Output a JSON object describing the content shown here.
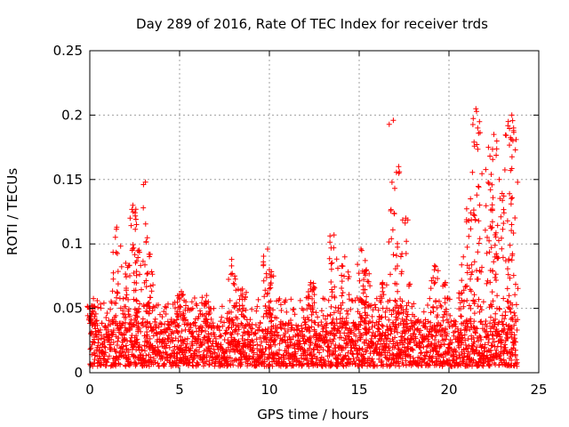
{
  "chart_data": {
    "type": "scatter",
    "title": "Day 289 of 2016, Rate Of TEC Index for receiver trds",
    "xlabel": "GPS time / hours",
    "ylabel": "ROTI / TECUs",
    "xlim": [
      0,
      25
    ],
    "ylim": [
      0,
      0.25
    ],
    "xticks": [
      0,
      5,
      10,
      15,
      20,
      25
    ],
    "xtick_labels": [
      "0",
      "5",
      "10",
      "15",
      "20",
      "25"
    ],
    "yticks": [
      0,
      0.05,
      0.1,
      0.15,
      0.2,
      0.25
    ],
    "ytick_labels": [
      "0",
      "0.05",
      "0.1",
      "0.15",
      "0.2",
      "0.25"
    ],
    "grid": true,
    "marker": "+",
    "marker_color": "#ff0000",
    "series": [
      {
        "name": "ROTI",
        "sample_step_hours": 0.05,
        "start_hour": 0.0,
        "baseline_band": [
          0.005,
          0.04
        ],
        "peaks": [
          {
            "x": 0.1,
            "y": 0.052
          },
          {
            "x": 1.5,
            "y": 0.113
          },
          {
            "x": 2.0,
            "y": 0.085
          },
          {
            "x": 2.4,
            "y": 0.13
          },
          {
            "x": 2.6,
            "y": 0.115
          },
          {
            "x": 3.1,
            "y": 0.148
          },
          {
            "x": 3.3,
            "y": 0.092
          },
          {
            "x": 5.1,
            "y": 0.063
          },
          {
            "x": 6.5,
            "y": 0.06
          },
          {
            "x": 7.9,
            "y": 0.088
          },
          {
            "x": 8.5,
            "y": 0.065
          },
          {
            "x": 9.9,
            "y": 0.096
          },
          {
            "x": 10.0,
            "y": 0.08
          },
          {
            "x": 12.3,
            "y": 0.07
          },
          {
            "x": 13.6,
            "y": 0.107
          },
          {
            "x": 14.2,
            "y": 0.09
          },
          {
            "x": 15.1,
            "y": 0.096
          },
          {
            "x": 15.4,
            "y": 0.08
          },
          {
            "x": 16.3,
            "y": 0.07
          },
          {
            "x": 16.9,
            "y": 0.196
          },
          {
            "x": 17.2,
            "y": 0.16
          },
          {
            "x": 17.6,
            "y": 0.12
          },
          {
            "x": 19.2,
            "y": 0.083
          },
          {
            "x": 19.8,
            "y": 0.07
          },
          {
            "x": 20.8,
            "y": 0.09
          },
          {
            "x": 21.2,
            "y": 0.135
          },
          {
            "x": 21.5,
            "y": 0.205
          },
          {
            "x": 21.6,
            "y": 0.19
          },
          {
            "x": 22.2,
            "y": 0.175
          },
          {
            "x": 22.5,
            "y": 0.185
          },
          {
            "x": 22.8,
            "y": 0.15
          },
          {
            "x": 23.3,
            "y": 0.195
          },
          {
            "x": 23.5,
            "y": 0.2
          },
          {
            "x": 23.6,
            "y": 0.188
          }
        ]
      }
    ]
  }
}
